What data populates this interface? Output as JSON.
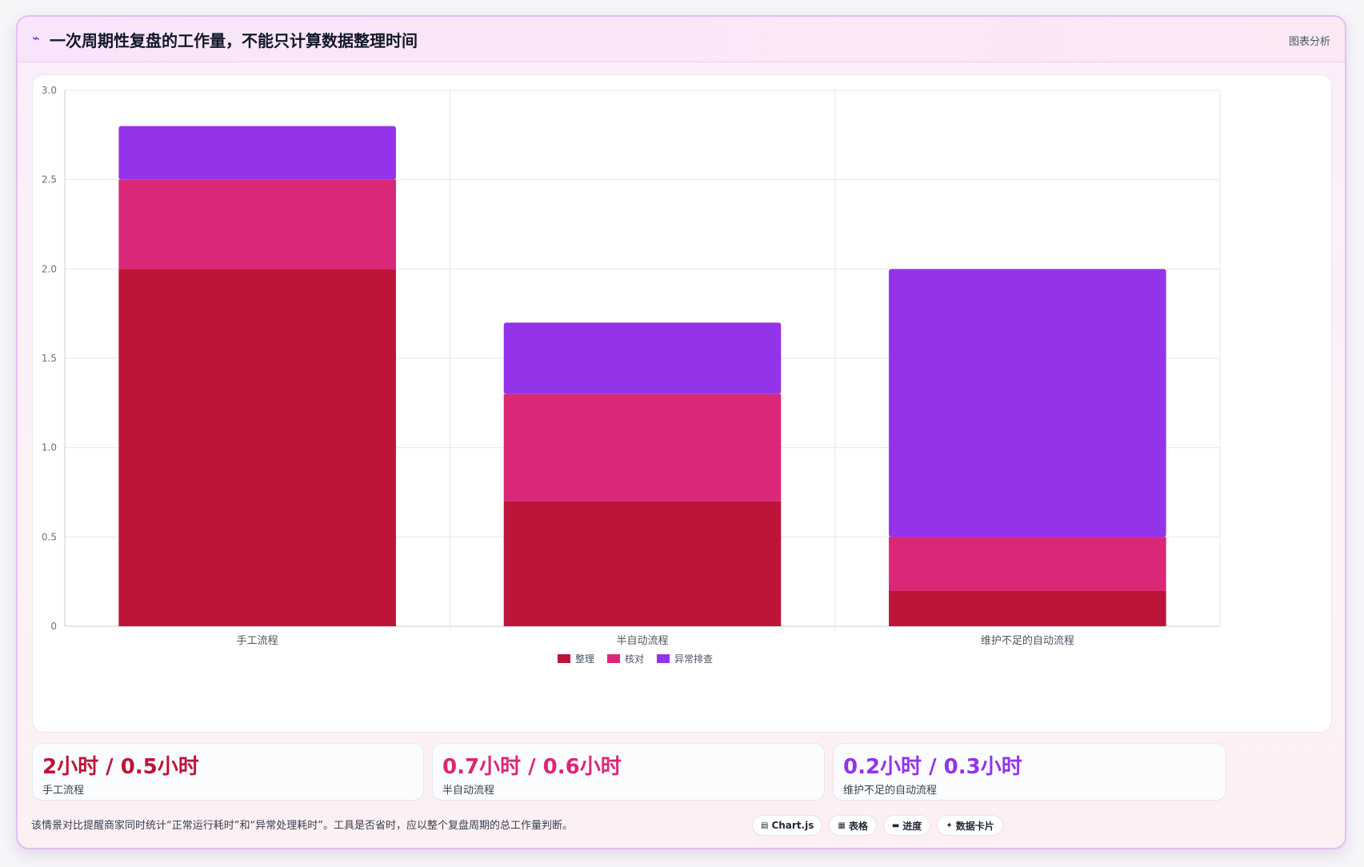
{
  "header": {
    "title_icon": "trend-icon",
    "title": "一次周期性复盘的工作量，不能只计算数据整理时间",
    "analysis_label": "图表分析"
  },
  "chart_data": {
    "type": "bar",
    "stacked": true,
    "categories": [
      "手工流程",
      "半自动流程",
      "维护不足的自动流程"
    ],
    "series": [
      {
        "name": "整理",
        "color": "#bd1439",
        "values": [
          2.0,
          0.7,
          0.2
        ]
      },
      {
        "name": "核对",
        "color": "#db2777",
        "values": [
          0.5,
          0.6,
          0.3
        ]
      },
      {
        "name": "异常排查",
        "color": "#9333ea",
        "values": [
          0.3,
          0.4,
          1.5
        ]
      }
    ],
    "ylim": [
      0,
      3.0
    ],
    "yticks": [
      "0",
      "0.5",
      "1.0",
      "1.5",
      "2.0",
      "2.5",
      "3.0"
    ],
    "ytick_values": [
      0,
      0.5,
      1.0,
      1.5,
      2.0,
      2.5,
      3.0
    ],
    "grid": true,
    "legend_position": "bottom"
  },
  "stats": [
    {
      "value": "2小时 / 0.5小时",
      "label": "手工流程",
      "color": "#bd1439"
    },
    {
      "value": "0.7小时 / 0.6小时",
      "label": "半自动流程",
      "color": "#db2777"
    },
    {
      "value": "0.2小时 / 0.3小时",
      "label": "维护不足的自动流程",
      "color": "#9333ea"
    }
  ],
  "footnote": "该情景对比提醒商家同时统计“正常运行耗时”和“异常处理耗时”。工具是否省时，应以整个复盘周期的总工作量判断。",
  "chips": [
    {
      "icon": "chart-icon",
      "glyph": "▤",
      "label": "Chart.js"
    },
    {
      "icon": "table-icon",
      "glyph": "▦",
      "label": "表格"
    },
    {
      "icon": "progress-icon",
      "glyph": "▬",
      "label": "进度"
    },
    {
      "icon": "sparkle-icon",
      "glyph": "✦",
      "label": "数据卡片"
    }
  ]
}
